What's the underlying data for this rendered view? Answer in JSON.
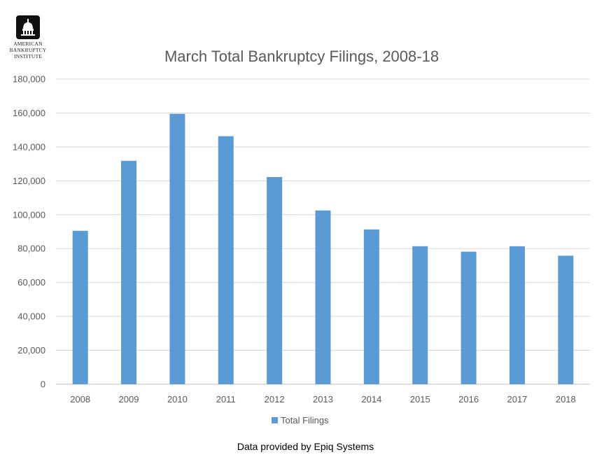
{
  "logo": {
    "icon": "capitol-dome-icon",
    "line1": "American",
    "line2": "Bankruptcy",
    "line3": "Institute"
  },
  "footer": "Data provided by Epiq Systems",
  "chart_data": {
    "type": "bar",
    "title": "March Total Bankruptcy Filings, 2008-18",
    "xlabel": "",
    "ylabel": "",
    "categories": [
      "2008",
      "2009",
      "2010",
      "2011",
      "2012",
      "2013",
      "2014",
      "2015",
      "2016",
      "2017",
      "2018"
    ],
    "series": [
      {
        "name": "Total Filings",
        "color": "#5B9BD5",
        "values": [
          90500,
          131800,
          159500,
          146300,
          122200,
          102500,
          91300,
          81400,
          78200,
          81400,
          75800
        ]
      }
    ],
    "ylim": [
      0,
      180000
    ],
    "yticks": [
      0,
      20000,
      40000,
      60000,
      80000,
      100000,
      120000,
      140000,
      160000,
      180000
    ],
    "ytick_labels": [
      "0",
      "20,000",
      "40,000",
      "60,000",
      "80,000",
      "100,000",
      "120,000",
      "140,000",
      "160,000",
      "180,000"
    ],
    "grid": true,
    "legend_position": "bottom"
  }
}
